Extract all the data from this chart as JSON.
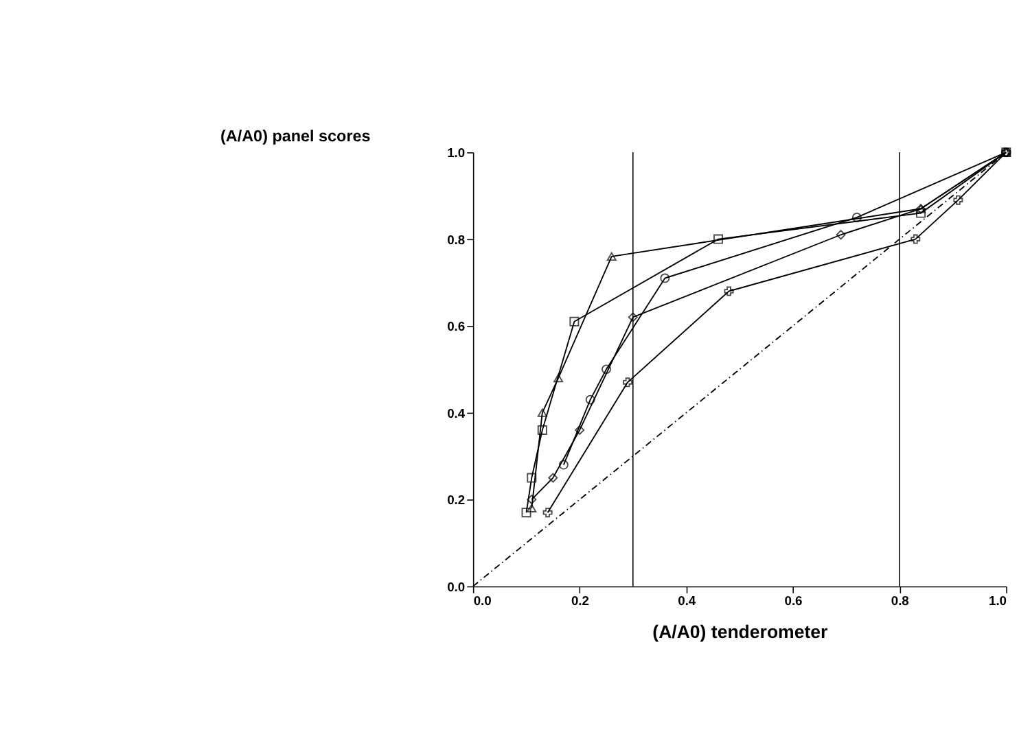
{
  "chart_data": {
    "type": "line",
    "xlabel": "(A/A0) tenderometer",
    "ylabel": "(A/A0) panel scores",
    "xlim": [
      0,
      1
    ],
    "ylim": [
      0,
      1
    ],
    "xticks": [
      {
        "value": 0,
        "label": "0.0"
      },
      {
        "value": 0.2,
        "label": "0.2"
      },
      {
        "value": 0.4,
        "label": "0.4"
      },
      {
        "value": 0.6,
        "label": "0.6"
      },
      {
        "value": 0.8,
        "label": "0.8"
      },
      {
        "value": 1,
        "label": "1.0"
      }
    ],
    "yticks": [
      {
        "value": 0,
        "label": "0.0"
      },
      {
        "value": 0.2,
        "label": "0.2"
      },
      {
        "value": 0.4,
        "label": "0.4"
      },
      {
        "value": 0.6,
        "label": "0.6"
      },
      {
        "value": 0.8,
        "label": "0.8"
      },
      {
        "value": 1,
        "label": "1.0"
      }
    ],
    "grid": false,
    "ref_lines": [
      {
        "axis": "x",
        "value": 0.3,
        "color": "#000000",
        "line_style": "solid"
      },
      {
        "axis": "x",
        "value": 0.8,
        "color": "#000000",
        "line_style": "solid"
      }
    ],
    "series": [
      {
        "color": "#000000",
        "marker": "square",
        "line_style": "solid",
        "x": [
          0.1,
          0.11,
          0.13,
          0.19,
          0.46,
          0.84,
          1.0
        ],
        "values": [
          0.17,
          0.25,
          0.36,
          0.61,
          0.8,
          0.86,
          1.0
        ]
      },
      {
        "color": "#000000",
        "marker": "triangle",
        "line_style": "solid",
        "x": [
          0.11,
          0.13,
          0.16,
          0.26,
          0.84,
          1.0
        ],
        "values": [
          0.18,
          0.4,
          0.48,
          0.76,
          0.87,
          1.0
        ]
      },
      {
        "color": "#000000",
        "marker": "circle",
        "line_style": "solid",
        "x": [
          0.17,
          0.22,
          0.25,
          0.36,
          0.72,
          1.0
        ],
        "values": [
          0.28,
          0.43,
          0.5,
          0.71,
          0.85,
          1.0
        ]
      },
      {
        "color": "#000000",
        "marker": "diamond",
        "line_style": "solid",
        "x": [
          0.11,
          0.15,
          0.2,
          0.3,
          0.69,
          0.84,
          1.0
        ],
        "values": [
          0.2,
          0.25,
          0.36,
          0.62,
          0.81,
          0.87,
          1.0
        ]
      },
      {
        "color": "#000000",
        "marker": "cross",
        "line_style": "solid",
        "x": [
          0.14,
          0.29,
          0.48,
          0.83,
          0.91,
          1.0
        ],
        "values": [
          0.17,
          0.47,
          0.68,
          0.8,
          0.89,
          1.0
        ]
      },
      {
        "color": "#000000",
        "marker": "none",
        "line_style": "dashed",
        "x": [
          0.0,
          1.0
        ],
        "values": [
          0.0,
          1.0
        ]
      }
    ]
  }
}
